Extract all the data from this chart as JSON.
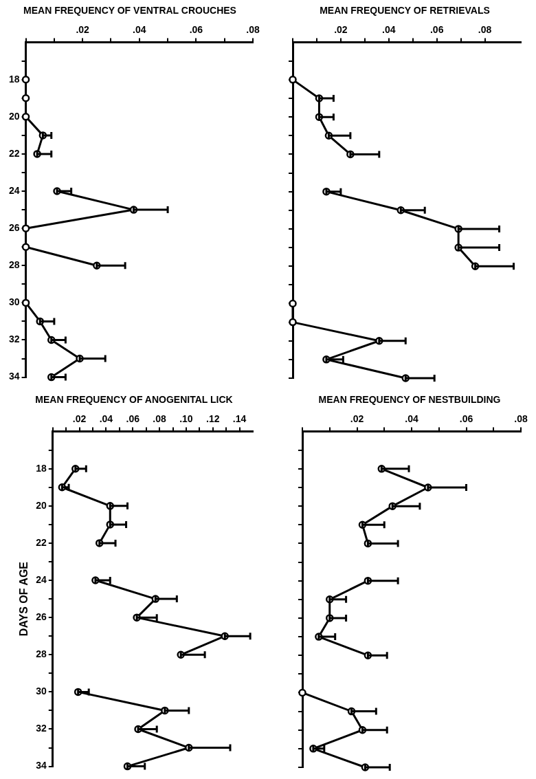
{
  "chart_data": [
    {
      "type": "line",
      "title": "MEAN FREQUENCY OF VENTRAL CROUCHES",
      "orientation": "horizontal",
      "marker": "circle",
      "x": [
        18,
        19,
        20,
        21,
        22,
        23,
        24,
        25,
        26,
        27,
        28,
        29,
        30,
        31,
        32,
        33,
        34
      ],
      "series": [
        {
          "color": "#000000",
          "values": [
            0,
            0,
            0,
            0.006,
            0.004,
            null,
            0.011,
            0.038,
            0,
            0,
            0.025,
            null,
            0,
            0.005,
            0.009,
            0.019,
            0.009
          ],
          "errors": [
            null,
            null,
            null,
            [
              0.006,
              0.009
            ],
            [
              0.004,
              0.009
            ],
            null,
            [
              0.011,
              0.016
            ],
            [
              0.038,
              0.05
            ],
            null,
            null,
            [
              0.025,
              0.035
            ],
            null,
            null,
            [
              0.005,
              0.01
            ],
            [
              0.009,
              0.014
            ],
            [
              0.019,
              0.028
            ],
            [
              0.009,
              0.014
            ]
          ]
        }
      ],
      "xlim": [
        0,
        0.08
      ],
      "xticks": [
        {
          "value": 0,
          "label": null
        },
        {
          "value": 0.01,
          "label": null
        },
        {
          "value": 0.02,
          "label": ".02"
        },
        {
          "value": 0.03,
          "label": null
        },
        {
          "value": 0.04,
          "label": ".04"
        },
        {
          "value": 0.05,
          "label": null
        },
        {
          "value": 0.06,
          "label": ".06"
        },
        {
          "value": 0.07,
          "label": null
        },
        {
          "value": 0.08,
          "label": ".08"
        }
      ],
      "ylim": [
        34,
        16
      ],
      "yticks": [
        {
          "value": 17,
          "label": null
        },
        18,
        {
          "value": 19,
          "label": null
        },
        20,
        {
          "value": 21,
          "label": null
        },
        22,
        {
          "value": 23,
          "label": null
        },
        24,
        {
          "value": 25,
          "label": null
        },
        26,
        {
          "value": 27,
          "label": null
        },
        28,
        {
          "value": 29,
          "label": null
        },
        30,
        {
          "value": 31,
          "label": null
        },
        32,
        {
          "value": 33,
          "label": null
        },
        34
      ]
    },
    {
      "type": "line",
      "title": "MEAN FREQUENCY OF RETRIEVALS",
      "orientation": "horizontal",
      "marker": "circle",
      "tick_labels": "x",
      "x": [
        18,
        19,
        20,
        21,
        22,
        23,
        24,
        25,
        26,
        27,
        28,
        29,
        30,
        31,
        32,
        33,
        34
      ],
      "series": [
        {
          "color": "#000000",
          "values": [
            0,
            0.011,
            0.011,
            0.015,
            0.024,
            null,
            0.014,
            0.045,
            0.069,
            0.069,
            0.076,
            null,
            0,
            0,
            0.036,
            0.014,
            0.047
          ],
          "errors": [
            null,
            [
              0.011,
              0.017
            ],
            [
              0.011,
              0.017
            ],
            [
              0.015,
              0.024
            ],
            [
              0.024,
              0.036
            ],
            null,
            [
              0.014,
              0.02
            ],
            [
              0.045,
              0.055
            ],
            [
              0.069,
              0.086
            ],
            [
              0.069,
              0.086
            ],
            [
              0.076,
              0.092
            ],
            null,
            null,
            null,
            [
              0.036,
              0.047
            ],
            [
              0.014,
              0.021
            ],
            [
              0.047,
              0.059
            ]
          ]
        }
      ],
      "xlim": [
        0,
        0.095
      ],
      "xticks": [
        {
          "value": 0,
          "label": null
        },
        {
          "value": 0.01,
          "label": null
        },
        {
          "value": 0.02,
          "label": ".02"
        },
        {
          "value": 0.03,
          "label": null
        },
        {
          "value": 0.04,
          "label": ".04"
        },
        {
          "value": 0.05,
          "label": null
        },
        {
          "value": 0.06,
          "label": ".06"
        },
        {
          "value": 0.07,
          "label": null
        },
        {
          "value": 0.08,
          "label": ".08"
        }
      ],
      "ylim": [
        34,
        16
      ],
      "yticks": [
        17,
        18,
        19,
        20,
        21,
        22,
        23,
        24,
        25,
        26,
        27,
        28,
        29,
        30,
        31,
        32,
        33,
        34
      ]
    },
    {
      "type": "line",
      "title": "MEAN FREQUENCY OF ANOGENITAL LICK",
      "ylabel": "DAYS OF AGE",
      "orientation": "horizontal",
      "marker": "circle",
      "x": [
        18,
        19,
        20,
        21,
        22,
        23,
        24,
        25,
        26,
        27,
        28,
        29,
        30,
        31,
        32,
        33,
        34
      ],
      "series": [
        {
          "color": "#000000",
          "values": [
            0.017,
            0.007,
            0.043,
            0.043,
            0.035,
            null,
            0.032,
            0.077,
            0.063,
            0.129,
            0.096,
            null,
            0.019,
            0.084,
            0.064,
            0.102,
            0.056
          ],
          "errors": [
            [
              0.017,
              0.025
            ],
            [
              0.007,
              0.012
            ],
            [
              0.043,
              0.056
            ],
            [
              0.043,
              0.055
            ],
            [
              0.035,
              0.047
            ],
            null,
            [
              0.032,
              0.043
            ],
            [
              0.077,
              0.093
            ],
            [
              0.063,
              0.078
            ],
            [
              0.129,
              0.148
            ],
            [
              0.096,
              0.114
            ],
            null,
            [
              0.019,
              0.027
            ],
            [
              0.084,
              0.102
            ],
            [
              0.064,
              0.078
            ],
            [
              0.102,
              0.133
            ],
            [
              0.056,
              0.069
            ]
          ]
        }
      ],
      "xlim": [
        0,
        0.15
      ],
      "xticks": [
        {
          "value": 0,
          "label": null
        },
        {
          "value": 0.01,
          "label": null
        },
        {
          "value": 0.02,
          "label": ".02"
        },
        {
          "value": 0.03,
          "label": null
        },
        {
          "value": 0.04,
          "label": ".04"
        },
        {
          "value": 0.05,
          "label": null
        },
        {
          "value": 0.06,
          "label": ".06"
        },
        {
          "value": 0.07,
          "label": null
        },
        {
          "value": 0.08,
          "label": ".08"
        },
        {
          "value": 0.09,
          "label": null
        },
        {
          "value": 0.1,
          "label": ".10"
        },
        {
          "value": 0.11,
          "label": null
        },
        {
          "value": 0.12,
          "label": ".12"
        },
        {
          "value": 0.13,
          "label": null
        },
        {
          "value": 0.14,
          "label": ".14"
        }
      ],
      "ylim": [
        34,
        16
      ],
      "yticks": [
        {
          "value": 17,
          "label": null
        },
        18,
        {
          "value": 19,
          "label": null
        },
        20,
        {
          "value": 21,
          "label": null
        },
        22,
        {
          "value": 23,
          "label": null
        },
        24,
        {
          "value": 25,
          "label": null
        },
        26,
        {
          "value": 27,
          "label": null
        },
        28,
        {
          "value": 29,
          "label": null
        },
        30,
        {
          "value": 31,
          "label": null
        },
        32,
        {
          "value": 33,
          "label": null
        },
        34
      ]
    },
    {
      "type": "line",
      "title": "MEAN FREQUENCY OF NESTBUILDING",
      "orientation": "horizontal",
      "marker": "circle",
      "tick_labels": "x",
      "x": [
        18,
        19,
        20,
        21,
        22,
        23,
        24,
        25,
        26,
        27,
        28,
        29,
        30,
        31,
        32,
        33,
        34
      ],
      "series": [
        {
          "color": "#000000",
          "values": [
            0.029,
            0.046,
            0.033,
            0.022,
            0.024,
            null,
            0.024,
            0.01,
            0.01,
            0.006,
            0.024,
            null,
            0,
            0.018,
            0.022,
            0.004,
            0.023
          ],
          "errors": [
            [
              0.029,
              0.039
            ],
            [
              0.046,
              0.06
            ],
            [
              0.033,
              0.043
            ],
            [
              0.022,
              0.03
            ],
            [
              0.024,
              0.035
            ],
            null,
            [
              0.024,
              0.035
            ],
            [
              0.01,
              0.016
            ],
            [
              0.01,
              0.016
            ],
            [
              0.006,
              0.012
            ],
            [
              0.024,
              0.031
            ],
            null,
            null,
            [
              0.018,
              0.027
            ],
            [
              0.022,
              0.031
            ],
            [
              0.004,
              0.008
            ],
            [
              0.023,
              0.032
            ]
          ]
        }
      ],
      "xlim": [
        0,
        0.08
      ],
      "xticks": [
        {
          "value": 0,
          "label": null
        },
        {
          "value": 0.01,
          "label": null
        },
        {
          "value": 0.02,
          "label": ".02"
        },
        {
          "value": 0.03,
          "label": null
        },
        {
          "value": 0.04,
          "label": ".04"
        },
        {
          "value": 0.05,
          "label": null
        },
        {
          "value": 0.06,
          "label": ".06"
        },
        {
          "value": 0.07,
          "label": null
        },
        {
          "value": 0.08,
          "label": ".08"
        }
      ],
      "ylim": [
        34,
        16
      ],
      "yticks": [
        {
          "value": 17,
          "label": null
        },
        18,
        {
          "value": 19,
          "label": null
        },
        20,
        {
          "value": 21,
          "label": null
        },
        22,
        {
          "value": 23,
          "label": null
        },
        24,
        {
          "value": 25,
          "label": null
        },
        26,
        {
          "value": 27,
          "label": null
        },
        28,
        {
          "value": 29,
          "label": null
        },
        30,
        {
          "value": 31,
          "label": null
        },
        32,
        {
          "value": 33,
          "label": null
        },
        34
      ]
    }
  ]
}
